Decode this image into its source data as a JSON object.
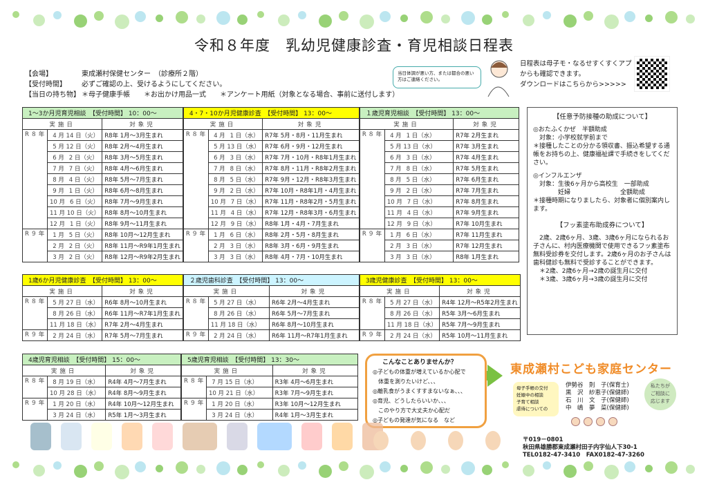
{
  "title": "令和８年度　乳幼児健康診査・育児相談日程表",
  "info": [
    {
      "label": "【会場】",
      "text": "東成瀬村保健センター　（診療所２階）"
    },
    {
      "label": "【受付時間】",
      "text": "必ずご確認の上、受けるようにしてください。"
    },
    {
      "label": "【当日の持ち物】",
      "text": "＊母子健康手帳　　＊お出かけ用品一式　　＊アンケート用紙（対象となる場合、事前に送付します）"
    }
  ],
  "bubble": "当日体調が悪い方、または都合の悪い方はご連絡ください。",
  "app_note": [
    "日程表は母子モ・なるせすくすくアプ",
    "からも確認できます。",
    "ダウンロードはこちらから>>>>>"
  ],
  "col_date": "実施日",
  "col_target": "対象児",
  "colors": {
    "green": "#c8f0c0",
    "yellow": "#ffff00",
    "cyan": "#ccf4ff",
    "orange": "#f08c28"
  },
  "tables": [
    {
      "title": "1～3か月児育児相談　【受付時間】 10：00～",
      "color": "green",
      "rows": [
        [
          "R ８ 年",
          "4",
          "14",
          "火",
          "R8年 1月～3月生まれ"
        ],
        [
          "",
          "5",
          "12",
          "火",
          "R8年 2月～4月生まれ"
        ],
        [
          "",
          "6",
          "2",
          "火",
          "R8年 3月～5月生まれ"
        ],
        [
          "",
          "7",
          "7",
          "火",
          "R8年 4月～6月生まれ"
        ],
        [
          "",
          "8",
          "4",
          "火",
          "R8年 5月～7月生まれ"
        ],
        [
          "",
          "9",
          "1",
          "火",
          "R8年 6月～8月生まれ"
        ],
        [
          "",
          "10",
          "6",
          "火",
          "R8年 7月～9月生まれ"
        ],
        [
          "",
          "11",
          "10",
          "火",
          "R8年 8月～10月生まれ"
        ],
        [
          "",
          "12",
          "1",
          "火",
          "R8年 9月～11月生まれ"
        ],
        [
          "R ９ 年",
          "1",
          "5",
          "火",
          "R8年 10月～12月生まれ"
        ],
        [
          "",
          "2",
          "2",
          "火",
          "R8年 11月～R9年1月生まれ"
        ],
        [
          "",
          "3",
          "2",
          "火",
          "R8年 12月～R9年2月生まれ"
        ]
      ]
    },
    {
      "title": "4・7・10か月児健康診査　【受付時間】 13：00～",
      "color": "yellow",
      "rows": [
        [
          "R ８ 年",
          "4",
          "1",
          "水",
          "R7年 5月・8月・11月生まれ"
        ],
        [
          "",
          "5",
          "13",
          "水",
          "R7年 6月・9月・12月生まれ"
        ],
        [
          "",
          "6",
          "3",
          "水",
          "R7年 7月・10月・R8年1月生まれ"
        ],
        [
          "",
          "7",
          "8",
          "水",
          "R7年 8月・11月・R8年2月生まれ"
        ],
        [
          "",
          "8",
          "5",
          "水",
          "R7年 9月・12月・R8年3月生まれ"
        ],
        [
          "",
          "9",
          "2",
          "水",
          "R7年 10月・R8年1月・4月生まれ"
        ],
        [
          "",
          "10",
          "7",
          "水",
          "R7年 11月・R8年2月・5月生まれ"
        ],
        [
          "",
          "11",
          "4",
          "水",
          "R7年 12月・R8年3月・6月生まれ"
        ],
        [
          "",
          "12",
          "9",
          "水",
          "R8年 1月・4月・7月生まれ"
        ],
        [
          "R ９ 年",
          "1",
          "6",
          "水",
          "R8年 2月・5月・8月生まれ"
        ],
        [
          "",
          "2",
          "3",
          "水",
          "R8年 3月・6月・9月生まれ"
        ],
        [
          "",
          "3",
          "3",
          "水",
          "R8年 4月・7月・10月生まれ"
        ]
      ]
    },
    {
      "title": "１歳児育児相談　【受付時間】 13：00～",
      "color": "green",
      "rows": [
        [
          "R ８ 年",
          "4",
          "1",
          "水",
          "R7年 2月生まれ"
        ],
        [
          "",
          "5",
          "13",
          "水",
          "R7年 3月生まれ"
        ],
        [
          "",
          "6",
          "3",
          "水",
          "R7年 4月生まれ"
        ],
        [
          "",
          "7",
          "8",
          "水",
          "R7年 5月生まれ"
        ],
        [
          "",
          "8",
          "5",
          "水",
          "R7年 6月生まれ"
        ],
        [
          "",
          "9",
          "2",
          "水",
          "R7年 7月生まれ"
        ],
        [
          "",
          "10",
          "7",
          "水",
          "R7年 8月生まれ"
        ],
        [
          "",
          "11",
          "4",
          "水",
          "R7年 9月生まれ"
        ],
        [
          "",
          "12",
          "9",
          "水",
          "R7年 10月生まれ"
        ],
        [
          "R ９ 年",
          "1",
          "6",
          "水",
          "R7年 11月生まれ"
        ],
        [
          "",
          "2",
          "3",
          "水",
          "R7年 12月生まれ"
        ],
        [
          "",
          "3",
          "3",
          "水",
          "R8年 1月生まれ"
        ]
      ]
    },
    {
      "title": "1歳6か月児健康診査　【受付時間】 13：00～",
      "color": "yellow",
      "rows": [
        [
          "R ８ 年",
          "5",
          "27",
          "水",
          "R6年 8月～10月生まれ"
        ],
        [
          "",
          "8",
          "26",
          "水",
          "R6年 11月～R7年1月生まれ"
        ],
        [
          "",
          "11",
          "18",
          "水",
          "R7年 2月～4月生まれ"
        ],
        [
          "R ９ 年",
          "2",
          "24",
          "水",
          "R7年 5月～7月生まれ"
        ]
      ]
    },
    {
      "title": "２歳児歯科診査　【受付時間】 13：00～",
      "color": "cyan",
      "rows": [
        [
          "R ８ 年",
          "5",
          "27",
          "水",
          "R6年 2月～4月生まれ"
        ],
        [
          "",
          "8",
          "26",
          "水",
          "R6年 5月～7月生まれ"
        ],
        [
          "",
          "11",
          "18",
          "水",
          "R6年 8月～10月生まれ"
        ],
        [
          "R ９ 年",
          "2",
          "24",
          "水",
          "R6年 11月～R7年1月生まれ"
        ]
      ]
    },
    {
      "title": "3歳児健康診査　【受付時間】 13：00～",
      "color": "yellow",
      "rows": [
        [
          "R ８ 年",
          "5",
          "27",
          "水",
          "R4年 12月～R5年2月生まれ"
        ],
        [
          "",
          "8",
          "26",
          "水",
          "R5年 3月～6月生まれ"
        ],
        [
          "",
          "11",
          "18",
          "水",
          "R5年 7月～9月生まれ"
        ],
        [
          "R ９ 年",
          "2",
          "24",
          "水",
          "R5年 10月～11月生まれ"
        ]
      ]
    },
    {
      "title": "4歳児育児相談　【受付時間】 15：00～",
      "color": "green",
      "rows": [
        [
          "R ８ 年",
          "8",
          "19",
          "水",
          "R4年 4月～7月生まれ"
        ],
        [
          "",
          "10",
          "28",
          "水",
          "R4年 8月～9月生まれ"
        ],
        [
          "R ９ 年",
          "1",
          "20",
          "水",
          "R4年 10月～12月生まれ"
        ],
        [
          "",
          "3",
          "24",
          "水",
          "R5年 1月～3月生まれ"
        ]
      ]
    },
    {
      "title": "5歳児育児相談　【受付時間】 13：30～",
      "color": "green",
      "rows": [
        [
          "R ８ 年",
          "7",
          "15",
          "水",
          "R3年 4月～6月生まれ"
        ],
        [
          "",
          "10",
          "21",
          "水",
          "R3年 7月～9月生まれ"
        ],
        [
          "R ９ 年",
          "1",
          "20",
          "水",
          "R3年 10月～12月生まれ"
        ],
        [
          "",
          "3",
          "24",
          "水",
          "R4年 1月～3月生まれ"
        ]
      ]
    }
  ],
  "note": {
    "h1": "【任意予防接種の助成について】",
    "p1": [
      "◎おたふくかぜ　半額助成",
      "　対象：小学校就学前まで",
      "＊接種したことの分かる領収書、振込希望する通帳をお持ちの上、健康福祉課で手続きをしてください。"
    ],
    "p2": [
      "◎インフルエンザ",
      "　対象：生後6ヶ月から高校生　一部助成",
      "　　　　妊婦　　　　　　　　全額助成",
      "＊接種時期になりましたら、対象者に個別案内します。"
    ],
    "h2": "【フッ素塗布助成券について】",
    "p3": [
      "　2歳、2歳6ヶ月、3歳、3歳6ヶ月になられるお子さんに、村内医療機関で使用できるフッ素塗布無料受診券を交付します。2歳6ヶ月のお子さんは歯科健診も無料で受診することができます。",
      "　＊2歳、2歳6ヶ月→2歳の誕生月に交付",
      "　＊3歳、3歳6ヶ月→3歳の誕生月に交付"
    ]
  },
  "ask": {
    "title": "こんなことありませんか？",
    "lines": [
      "◎子どもの体重が増えているか心配で",
      "　体重を測りたいけど、、、",
      "◎離乳食がうまくすすまないなぁ、、、",
      "◎育児、どうしたらいいか、、、",
      "　このやり方で大丈夫か心配だ",
      "◎子どもの発達が気になる　など"
    ]
  },
  "center": {
    "name": "東成瀬村こども家庭センター",
    "services": [
      "母子手帳の交付",
      "妊娠中の相談",
      "子育て相談",
      "虐待についての"
    ],
    "staff": [
      "伊勢谷　則　子(保育士)",
      "黒　沢　紗恵子(保健師)",
      "石　川　文　子(保健師)",
      "中　嶋　夢　菜(保健師)"
    ],
    "talk": [
      "私たちが",
      "ご相談に",
      "応じます"
    ],
    "postal": "〒019－0801",
    "address": "秋田県雄勝郡東成瀬村田子内字仙人下30-1",
    "tel": "TEL0182-47-3410　FAX0182-47-3260"
  }
}
